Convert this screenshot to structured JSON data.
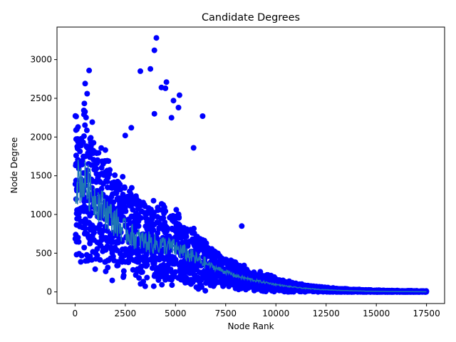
{
  "chart_data": {
    "type": "scatter",
    "title": "Candidate Degrees",
    "xlabel": "Node Rank",
    "ylabel": "Node Degree",
    "xlim": [
      -900,
      18400
    ],
    "ylim": [
      -150,
      3420
    ],
    "xticks": [
      0,
      2500,
      5000,
      7500,
      10000,
      12500,
      15000,
      17500
    ],
    "xtick_labels": [
      "0",
      "2500",
      "5000",
      "7500",
      "10000",
      "12500",
      "15000",
      "17500"
    ],
    "yticks": [
      0,
      500,
      1000,
      1500,
      2000,
      2500,
      3000
    ],
    "ytick_labels": [
      "0",
      "500",
      "1000",
      "1500",
      "2000",
      "2500",
      "3000"
    ],
    "grid": false,
    "legend": "none",
    "n_points": 17500,
    "series": [
      {
        "kind": "scatter",
        "color": "#0000ff",
        "marker": "circle",
        "outliers": [
          [
            4050,
            3280
          ],
          [
            3950,
            3120
          ],
          [
            3750,
            2880
          ],
          [
            3250,
            2850
          ],
          [
            700,
            2860
          ],
          [
            4550,
            2710
          ],
          [
            4300,
            2640
          ],
          [
            4500,
            2630
          ],
          [
            5200,
            2540
          ],
          [
            600,
            2560
          ],
          [
            500,
            2690
          ],
          [
            6350,
            2270
          ],
          [
            3950,
            2300
          ],
          [
            4900,
            2470
          ],
          [
            5150,
            2380
          ],
          [
            2800,
            2120
          ],
          [
            2500,
            2020
          ],
          [
            8300,
            850
          ],
          [
            5900,
            1860
          ],
          [
            4800,
            2250
          ]
        ]
      },
      {
        "kind": "line",
        "color": "#1f77b4",
        "name": "",
        "profile": [
          [
            0,
            1400
          ],
          [
            300,
            1450
          ],
          [
            600,
            1380
          ],
          [
            1000,
            1200
          ],
          [
            1500,
            1050
          ],
          [
            2000,
            900
          ],
          [
            2500,
            780
          ],
          [
            3000,
            700
          ],
          [
            3500,
            650
          ],
          [
            4000,
            620
          ],
          [
            4500,
            600
          ],
          [
            5000,
            560
          ],
          [
            5500,
            500
          ],
          [
            6000,
            430
          ],
          [
            6500,
            370
          ],
          [
            7000,
            310
          ],
          [
            7500,
            260
          ],
          [
            8000,
            210
          ],
          [
            8500,
            175
          ],
          [
            9000,
            145
          ],
          [
            9500,
            120
          ],
          [
            10000,
            95
          ],
          [
            10500,
            75
          ],
          [
            11000,
            58
          ],
          [
            11500,
            45
          ],
          [
            12000,
            35
          ],
          [
            12500,
            28
          ],
          [
            13000,
            22
          ],
          [
            13500,
            17
          ],
          [
            14000,
            13
          ],
          [
            14500,
            10
          ],
          [
            15000,
            8
          ],
          [
            15500,
            6
          ],
          [
            16000,
            5
          ],
          [
            16500,
            4
          ],
          [
            17000,
            3
          ],
          [
            17500,
            2
          ]
        ]
      }
    ]
  }
}
